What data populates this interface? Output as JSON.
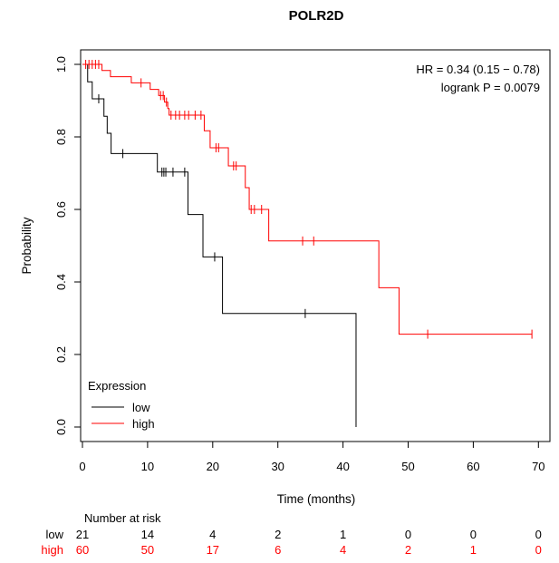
{
  "chart_data": {
    "type": "line",
    "title": "POLR2D",
    "xlabel": "Time (months)",
    "ylabel": "Probability",
    "xlim": [
      0,
      70
    ],
    "ylim": [
      0,
      1
    ],
    "x_ticks": [
      0,
      10,
      20,
      30,
      40,
      50,
      60,
      70
    ],
    "y_ticks": [
      0.0,
      0.2,
      0.4,
      0.6,
      0.8,
      1.0
    ],
    "x_tick_labels": [
      "0",
      "10",
      "20",
      "30",
      "40",
      "50",
      "60",
      "70"
    ],
    "y_tick_labels": [
      "0.0",
      "0.2",
      "0.4",
      "0.6",
      "0.8",
      "1.0"
    ],
    "grid": false,
    "legend": {
      "title": "Expression",
      "placement": "bottom-left",
      "entries": [
        {
          "label": "low",
          "color": "#000000"
        },
        {
          "label": "high",
          "color": "#ff0000"
        }
      ]
    },
    "stats": {
      "hr_text": "HR = 0.34 (0.15 − 0.78)",
      "p_text": "logrank P = 0.0079"
    },
    "series": [
      {
        "name": "low",
        "color": "#000000",
        "steps": [
          [
            0,
            1.0
          ],
          [
            0.8,
            0.952
          ],
          [
            1.5,
            0.905
          ],
          [
            3.3,
            0.857
          ],
          [
            3.8,
            0.81
          ],
          [
            4.4,
            0.754
          ],
          [
            11.5,
            0.703
          ],
          [
            16.2,
            0.586
          ],
          [
            18.5,
            0.469
          ],
          [
            21.5,
            0.313
          ],
          [
            42.0,
            0.0
          ]
        ],
        "end": 42.0,
        "censors": [
          [
            2.5,
            0.905
          ],
          [
            6.2,
            0.754
          ],
          [
            12.2,
            0.703
          ],
          [
            12.5,
            0.703
          ],
          [
            12.8,
            0.703
          ],
          [
            13.9,
            0.703
          ],
          [
            15.7,
            0.703
          ],
          [
            20.3,
            0.469
          ],
          [
            34.2,
            0.313
          ]
        ]
      },
      {
        "name": "high",
        "color": "#ff0000",
        "steps": [
          [
            0,
            1.0
          ],
          [
            3.0,
            0.983
          ],
          [
            4.3,
            0.966
          ],
          [
            7.5,
            0.949
          ],
          [
            10.4,
            0.931
          ],
          [
            11.7,
            0.914
          ],
          [
            12.6,
            0.896
          ],
          [
            13.1,
            0.878
          ],
          [
            13.3,
            0.86
          ],
          [
            18.7,
            0.817
          ],
          [
            19.6,
            0.77
          ],
          [
            22.4,
            0.72
          ],
          [
            25.0,
            0.66
          ],
          [
            25.6,
            0.6
          ],
          [
            28.6,
            0.513
          ],
          [
            45.5,
            0.384
          ],
          [
            48.6,
            0.256
          ]
        ],
        "end": 69.0,
        "censors": [
          [
            0.5,
            1.0
          ],
          [
            1.0,
            1.0
          ],
          [
            1.5,
            1.0
          ],
          [
            2.0,
            1.0
          ],
          [
            2.5,
            1.0
          ],
          [
            9.0,
            0.949
          ],
          [
            12.0,
            0.914
          ],
          [
            12.4,
            0.914
          ],
          [
            12.9,
            0.896
          ],
          [
            13.6,
            0.86
          ],
          [
            14.3,
            0.86
          ],
          [
            14.9,
            0.86
          ],
          [
            15.7,
            0.86
          ],
          [
            16.3,
            0.86
          ],
          [
            17.3,
            0.86
          ],
          [
            18.2,
            0.86
          ],
          [
            20.5,
            0.77
          ],
          [
            20.9,
            0.77
          ],
          [
            23.2,
            0.72
          ],
          [
            23.6,
            0.72
          ],
          [
            25.9,
            0.6
          ],
          [
            26.4,
            0.6
          ],
          [
            27.5,
            0.6
          ],
          [
            33.8,
            0.513
          ],
          [
            35.5,
            0.513
          ],
          [
            53.0,
            0.256
          ],
          [
            69.0,
            0.256
          ]
        ]
      }
    ],
    "risk_table": {
      "title": "Number at risk",
      "times": [
        0,
        10,
        20,
        30,
        40,
        50,
        60,
        70
      ],
      "rows": [
        {
          "label": "low",
          "color": "#000000",
          "values": [
            "21",
            "14",
            "4",
            "2",
            "1",
            "0",
            "0",
            "0"
          ]
        },
        {
          "label": "high",
          "color": "#ff0000",
          "values": [
            "60",
            "50",
            "17",
            "6",
            "4",
            "2",
            "1",
            "0"
          ]
        }
      ]
    }
  }
}
